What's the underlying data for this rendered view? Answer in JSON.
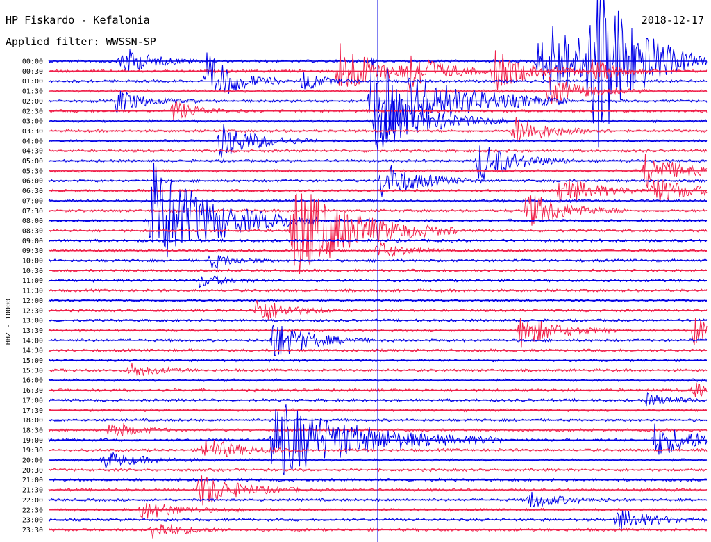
{
  "header": {
    "station": "HP Fiskardo - Kefalonia",
    "date": "2018-12-17",
    "filter": "Applied filter: WWSSN-SP"
  },
  "chart_data": {
    "type": "line",
    "title": "HP Fiskardo - Kefalonia",
    "date": "2018-12-17",
    "filter": "WWSSN-SP",
    "ylabel": "HHZ - 10000",
    "xlabel": "",
    "row_labels": [
      "00:00",
      "00:30",
      "01:00",
      "01:30",
      "02:00",
      "02:30",
      "03:00",
      "03:30",
      "04:00",
      "04:30",
      "05:00",
      "05:30",
      "06:00",
      "06:30",
      "07:00",
      "07:30",
      "08:00",
      "08:30",
      "09:00",
      "09:30",
      "10:00",
      "10:30",
      "11:00",
      "11:30",
      "12:00",
      "12:30",
      "13:00",
      "13:30",
      "14:00",
      "14:30",
      "15:00",
      "15:30",
      "16:00",
      "16:30",
      "17:00",
      "17:30",
      "18:00",
      "18:30",
      "19:00",
      "19:30",
      "20:00",
      "20:30",
      "21:00",
      "21:30",
      "22:00",
      "22:30",
      "23:00",
      "23:30"
    ],
    "trace_colors": [
      "#0000e6",
      "#f0214b"
    ],
    "minutes_per_row": 30,
    "grid": false,
    "events": [
      {
        "row": 0,
        "minute": 3.3,
        "amp": 22,
        "dur": 1.2
      },
      {
        "row": 0,
        "minute": 22.3,
        "amp": 30,
        "dur": 2.0
      },
      {
        "row": 0,
        "minute": 24.9,
        "amp": 90,
        "dur": 1.5
      },
      {
        "row": 0,
        "minute": 22.8,
        "amp": 35,
        "dur": 2.5
      },
      {
        "row": 0,
        "minute": 24.5,
        "amp": 40,
        "dur": 2.0
      },
      {
        "row": 1,
        "minute": 13.2,
        "amp": 45,
        "dur": 1.5
      },
      {
        "row": 1,
        "minute": 16.2,
        "amp": 30,
        "dur": 1.5
      },
      {
        "row": 1,
        "minute": 20.3,
        "amp": 28,
        "dur": 1.5
      },
      {
        "row": 1,
        "minute": 24.8,
        "amp": 18,
        "dur": 1.0
      },
      {
        "row": 2,
        "minute": 7.2,
        "amp": 40,
        "dur": 1.2
      },
      {
        "row": 2,
        "minute": 11.6,
        "amp": 16,
        "dur": 0.8
      },
      {
        "row": 3,
        "minute": 22.8,
        "amp": 20,
        "dur": 1.5
      },
      {
        "row": 4,
        "minute": 3.1,
        "amp": 18,
        "dur": 1.2
      },
      {
        "row": 4,
        "minute": 14.7,
        "amp": 70,
        "dur": 3.0
      },
      {
        "row": 5,
        "minute": 5.7,
        "amp": 16,
        "dur": 1.0
      },
      {
        "row": 6,
        "minute": 14.9,
        "amp": 45,
        "dur": 2.0
      },
      {
        "row": 7,
        "minute": 21.2,
        "amp": 22,
        "dur": 1.5
      },
      {
        "row": 8,
        "minute": 7.8,
        "amp": 26,
        "dur": 1.5
      },
      {
        "row": 10,
        "minute": 19.6,
        "amp": 30,
        "dur": 1.5
      },
      {
        "row": 11,
        "minute": 27.2,
        "amp": 25,
        "dur": 1.5
      },
      {
        "row": 12,
        "minute": 15.2,
        "amp": 28,
        "dur": 1.5
      },
      {
        "row": 13,
        "minute": 23.3,
        "amp": 22,
        "dur": 1.5
      },
      {
        "row": 13,
        "minute": 27.5,
        "amp": 22,
        "dur": 1.5
      },
      {
        "row": 15,
        "minute": 21.8,
        "amp": 28,
        "dur": 1.5
      },
      {
        "row": 16,
        "minute": 4.7,
        "amp": 85,
        "dur": 2.5
      },
      {
        "row": 17,
        "minute": 11.1,
        "amp": 75,
        "dur": 2.5
      },
      {
        "row": 19,
        "minute": 15.0,
        "amp": 14,
        "dur": 1.0
      },
      {
        "row": 20,
        "minute": 7.4,
        "amp": 12,
        "dur": 1.0
      },
      {
        "row": 22,
        "minute": 6.9,
        "amp": 10,
        "dur": 1.0
      },
      {
        "row": 25,
        "minute": 9.5,
        "amp": 20,
        "dur": 1.2
      },
      {
        "row": 27,
        "minute": 21.5,
        "amp": 24,
        "dur": 1.5
      },
      {
        "row": 27,
        "minute": 29.4,
        "amp": 22,
        "dur": 1.0
      },
      {
        "row": 28,
        "minute": 10.2,
        "amp": 30,
        "dur": 1.5
      },
      {
        "row": 31,
        "minute": 3.7,
        "amp": 12,
        "dur": 1.0
      },
      {
        "row": 33,
        "minute": 29.4,
        "amp": 12,
        "dur": 0.8
      },
      {
        "row": 34,
        "minute": 27.2,
        "amp": 10,
        "dur": 1.0
      },
      {
        "row": 37,
        "minute": 2.8,
        "amp": 14,
        "dur": 1.0
      },
      {
        "row": 38,
        "minute": 27.6,
        "amp": 24,
        "dur": 2.0
      },
      {
        "row": 38,
        "minute": 10.2,
        "amp": 60,
        "dur": 3.5
      },
      {
        "row": 39,
        "minute": 7.1,
        "amp": 18,
        "dur": 1.5
      },
      {
        "row": 40,
        "minute": 2.5,
        "amp": 12,
        "dur": 1.5
      },
      {
        "row": 43,
        "minute": 6.9,
        "amp": 26,
        "dur": 1.5
      },
      {
        "row": 44,
        "minute": 21.9,
        "amp": 12,
        "dur": 1.5
      },
      {
        "row": 45,
        "minute": 4.2,
        "amp": 14,
        "dur": 1.5
      },
      {
        "row": 46,
        "minute": 25.9,
        "amp": 16,
        "dur": 1.5
      },
      {
        "row": 47,
        "minute": 4.7,
        "amp": 14,
        "dur": 1.2
      }
    ],
    "spikes": [
      {
        "minute": 15.0,
        "row_from": 0,
        "row_to": 47
      }
    ]
  }
}
